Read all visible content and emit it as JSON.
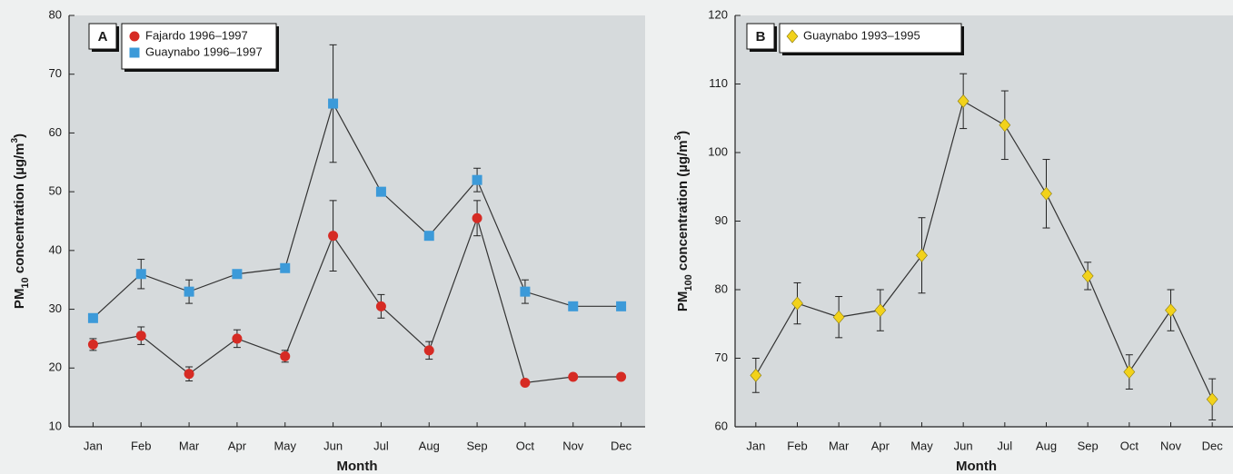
{
  "chart_data": [
    {
      "type": "line",
      "panel_label": "A",
      "xlabel": "Month",
      "ylabel_parts": [
        "PM",
        "10",
        " concentration (µg/m",
        "3",
        ")"
      ],
      "categories": [
        "Jan",
        "Feb",
        "Mar",
        "Apr",
        "May",
        "Jun",
        "Jul",
        "Aug",
        "Sep",
        "Oct",
        "Nov",
        "Dec"
      ],
      "line_color": "#333333",
      "series": [
        {
          "name": "Fajardo 1996–1997",
          "color": "#d62b24",
          "marker": "circle",
          "values": [
            24,
            25.5,
            19,
            25,
            22,
            42.5,
            30.5,
            23,
            45.5,
            17.5,
            18.5,
            18.5
          ],
          "errors": [
            1,
            1.5,
            1.2,
            1.5,
            1,
            6,
            2,
            1.5,
            3,
            null,
            null,
            null
          ]
        },
        {
          "name": "Guaynabo 1996–1997",
          "color": "#3c9ad9",
          "marker": "square",
          "values": [
            28.5,
            36,
            33,
            36,
            37,
            65,
            50,
            42.5,
            52,
            33,
            30.5,
            30.5
          ],
          "errors": [
            null,
            2.5,
            2,
            null,
            null,
            10,
            null,
            null,
            2,
            2,
            null,
            null
          ]
        }
      ],
      "ylim": [
        10,
        80
      ],
      "yticks": [
        10,
        20,
        30,
        40,
        50,
        60,
        70,
        80
      ]
    },
    {
      "type": "line",
      "panel_label": "B",
      "xlabel": "Month",
      "ylabel_parts": [
        "PM",
        "100",
        " concentration (µg/m",
        "3",
        ")"
      ],
      "categories": [
        "Jan",
        "Feb",
        "Mar",
        "Apr",
        "May",
        "Jun",
        "Jul",
        "Aug",
        "Sep",
        "Oct",
        "Nov",
        "Dec"
      ],
      "line_color": "#333333",
      "series": [
        {
          "name": "Guaynabo 1993–1995",
          "color": "#f2d21b",
          "marker": "diamond",
          "values": [
            67.5,
            78,
            76,
            77,
            85,
            107.5,
            104,
            94,
            82,
            68,
            77,
            64
          ],
          "errors": [
            2.5,
            3,
            3,
            3,
            5.5,
            4,
            5,
            5,
            2,
            2.5,
            3,
            3
          ]
        }
      ],
      "ylim": [
        60,
        120
      ],
      "yticks": [
        60,
        70,
        80,
        90,
        100,
        110,
        120
      ]
    }
  ]
}
